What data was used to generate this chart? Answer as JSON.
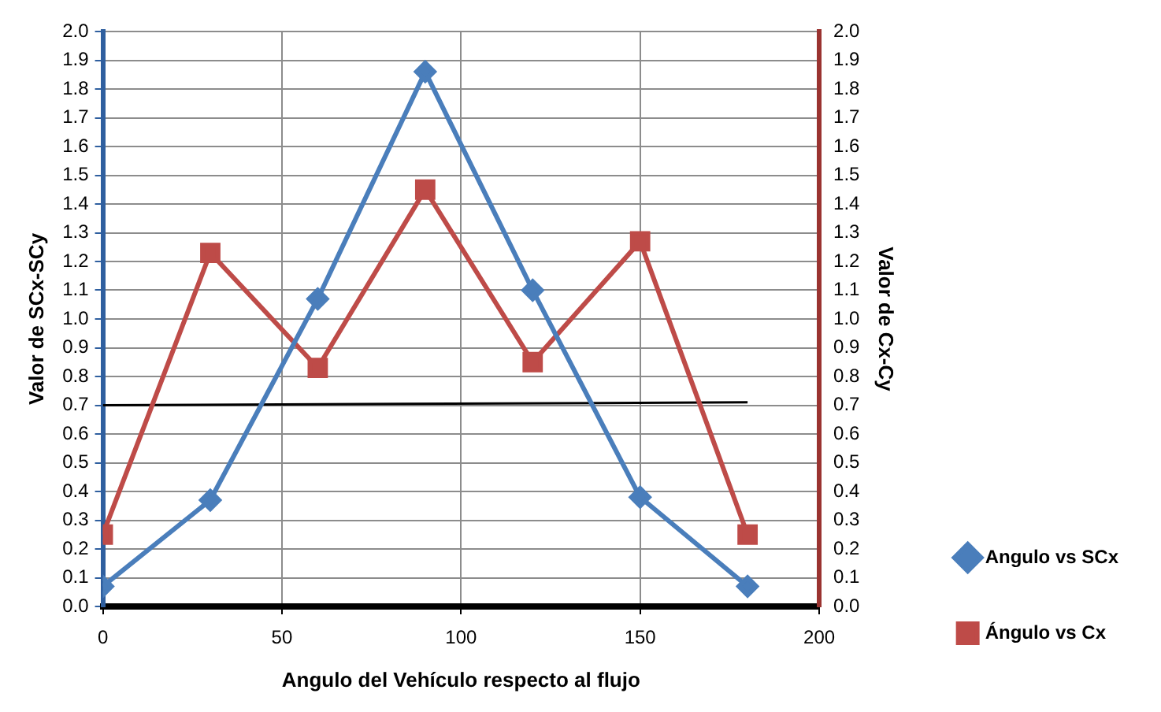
{
  "chart_data": {
    "type": "line",
    "xlabel": "Angulo del Vehículo respecto al flujo",
    "ylabel": "Valor de SCx-SCy",
    "y2label": "Valor de Cx-Cy",
    "x": [
      0,
      30,
      60,
      90,
      120,
      150,
      180
    ],
    "series": [
      {
        "name": "Angulo vs SCx",
        "color": "#4a7ebb",
        "values": [
          0.07,
          0.37,
          1.07,
          1.86,
          1.1,
          0.38,
          0.07
        ],
        "marker": "diamond"
      },
      {
        "name": "Ángulo vs Cx",
        "color": "#be4b48",
        "values": [
          0.25,
          1.23,
          0.83,
          1.45,
          0.85,
          1.27,
          0.25
        ],
        "marker": "square",
        "axis": "y2"
      },
      {
        "type": "line",
        "color": "#000000",
        "x": [
          0,
          180
        ],
        "values": [
          0.7,
          0.71
        ],
        "marker": "none"
      }
    ],
    "xlim": [
      0,
      200
    ],
    "xticks": [
      0,
      50,
      100,
      150,
      200
    ],
    "ylim": [
      0,
      2
    ],
    "yticks": [
      {
        "value": 0,
        "label": "0.0"
      },
      0.1,
      0.2,
      0.3,
      0.4,
      0.5,
      0.6,
      0.7,
      0.8,
      0.9,
      {
        "value": 1,
        "label": "1.0"
      },
      1.1,
      1.2,
      1.3,
      1.4,
      1.5,
      1.6,
      1.7,
      1.8,
      1.9,
      {
        "value": 2,
        "label": "2.0"
      }
    ],
    "y2lim": [
      0,
      2
    ],
    "y2ticks": [
      {
        "value": 0,
        "label": "0.0"
      },
      0.1,
      0.2,
      0.3,
      0.4,
      0.5,
      0.6,
      0.7,
      0.8,
      0.9,
      {
        "value": 1,
        "label": "1.0"
      },
      1.1,
      1.2,
      1.3,
      1.4,
      1.5,
      1.6,
      1.7,
      1.8,
      1.9,
      {
        "value": 2,
        "label": "2.0"
      }
    ],
    "grid": true,
    "legend": "right",
    "line_style": "solid"
  }
}
